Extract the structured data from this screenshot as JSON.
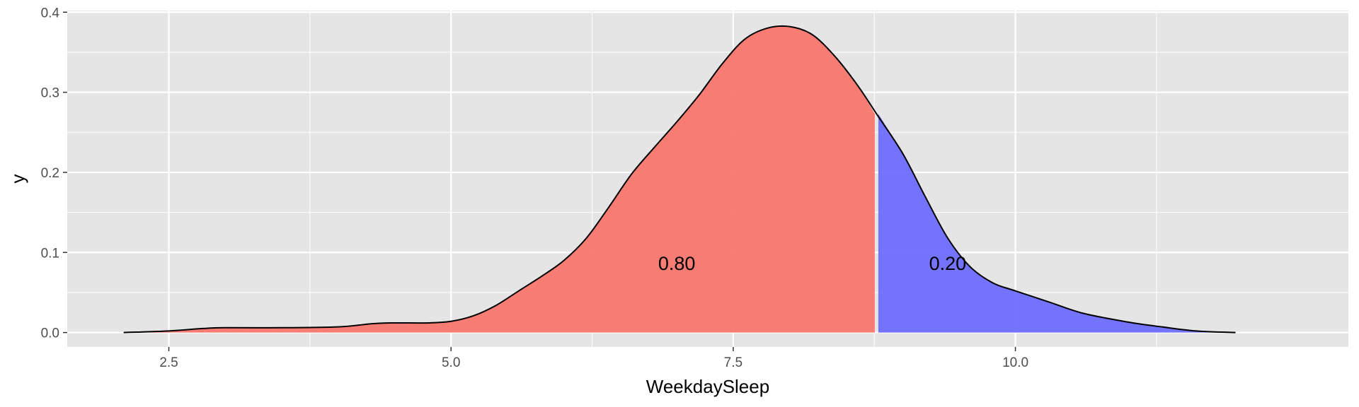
{
  "chart_data": {
    "type": "area",
    "xlabel": "WeekdaySleep",
    "ylabel": "y",
    "xlim": [
      1.6,
      12.95
    ],
    "ylim": [
      -0.018,
      0.402
    ],
    "x_ticks": [
      2.5,
      5.0,
      7.5,
      10.0
    ],
    "x_tick_labels": [
      "2.5",
      "5.0",
      "7.5",
      "10.0"
    ],
    "x_minor_ticks": [
      3.75,
      6.25,
      8.75,
      11.25
    ],
    "y_ticks": [
      0.0,
      0.1,
      0.2,
      0.3,
      0.4
    ],
    "y_tick_labels": [
      "0.0",
      "0.1",
      "0.2",
      "0.3",
      "0.4"
    ],
    "y_minor_ticks": [
      0.05,
      0.15,
      0.25,
      0.35
    ],
    "grid": true,
    "threshold": 8.77,
    "density": {
      "x": [
        2.1,
        2.5,
        2.8,
        3.0,
        3.5,
        4.0,
        4.3,
        4.5,
        4.8,
        5.0,
        5.2,
        5.4,
        5.6,
        5.8,
        6.0,
        6.2,
        6.4,
        6.6,
        6.8,
        7.0,
        7.2,
        7.4,
        7.6,
        7.8,
        8.0,
        8.2,
        8.4,
        8.6,
        8.77,
        9.0,
        9.2,
        9.4,
        9.6,
        9.8,
        10.0,
        10.3,
        10.6,
        11.0,
        11.3,
        11.6,
        11.95
      ],
      "y": [
        0.0,
        0.002,
        0.005,
        0.006,
        0.006,
        0.007,
        0.011,
        0.012,
        0.012,
        0.014,
        0.021,
        0.034,
        0.052,
        0.07,
        0.09,
        0.118,
        0.157,
        0.198,
        0.231,
        0.263,
        0.297,
        0.335,
        0.366,
        0.38,
        0.382,
        0.372,
        0.345,
        0.309,
        0.273,
        0.224,
        0.17,
        0.118,
        0.082,
        0.062,
        0.052,
        0.038,
        0.024,
        0.013,
        0.007,
        0.002,
        0.0
      ]
    },
    "regions": [
      {
        "label": "0.80",
        "label_x": 7.0,
        "label_y": 0.078,
        "color": "#F8766D"
      },
      {
        "label": "0.20",
        "label_x": 9.4,
        "label_y": 0.078,
        "color": "#6666FF"
      }
    ],
    "panel_background": "#E5E5E5",
    "grid_color": "#FFFFFF"
  }
}
